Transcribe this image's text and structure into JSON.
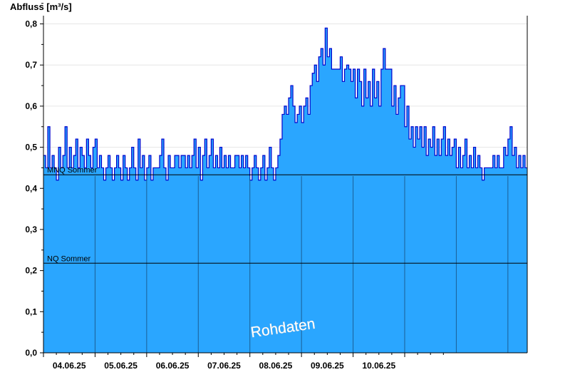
{
  "chart_data": {
    "type": "area",
    "ylabel": "Abfluss [m³/s]",
    "ylim": [
      0,
      0.82
    ],
    "y_ticks": [
      "0,0",
      "0,1",
      "0,2",
      "0,3",
      "0,4",
      "0,5",
      "0,6",
      "0,7",
      "0,8"
    ],
    "x_ticks": [
      "04.06.25",
      "05.06.25",
      "06.06.25",
      "07.06.25",
      "08.06.25",
      "09.06.25",
      "10.06.25"
    ],
    "grid": true,
    "fill_color": "#2aa6ff",
    "line_color": "#0000cc",
    "reference_lines": [
      {
        "label": "MNQ Sommer",
        "value": 0.433
      },
      {
        "label": "NQ Sommer",
        "value": 0.218
      }
    ],
    "watermark": "Rohdaten",
    "series": [
      {
        "x_start": "03.06.25 12:00",
        "interval_hours": 1,
        "values": [
          0.48,
          0.45,
          0.55,
          0.45,
          0.48,
          0.45,
          0.42,
          0.5,
          0.45,
          0.48,
          0.55,
          0.45,
          0.5,
          0.45,
          0.48,
          0.52,
          0.45,
          0.5,
          0.48,
          0.45,
          0.52,
          0.48,
          0.45,
          0.5,
          0.52,
          0.45,
          0.48,
          0.45,
          0.42,
          0.45,
          0.48,
          0.45,
          0.42,
          0.45,
          0.48,
          0.45,
          0.42,
          0.48,
          0.45,
          0.42,
          0.45,
          0.5,
          0.45,
          0.42,
          0.52,
          0.45,
          0.48,
          0.42,
          0.45,
          0.48,
          0.42,
          0.45,
          0.45,
          0.45,
          0.48,
          0.52,
          0.45,
          0.42,
          0.48,
          0.45,
          0.45,
          0.48,
          0.48,
          0.45,
          0.48,
          0.48,
          0.45,
          0.48,
          0.45,
          0.48,
          0.52,
          0.45,
          0.5,
          0.42,
          0.48,
          0.52,
          0.45,
          0.48,
          0.52,
          0.45,
          0.48,
          0.45,
          0.5,
          0.45,
          0.48,
          0.45,
          0.48,
          0.45,
          0.45,
          0.48,
          0.48,
          0.45,
          0.48,
          0.45,
          0.48,
          0.45,
          0.42,
          0.45,
          0.48,
          0.45,
          0.42,
          0.45,
          0.48,
          0.42,
          0.45,
          0.5,
          0.45,
          0.42,
          0.45,
          0.48,
          0.52,
          0.58,
          0.6,
          0.58,
          0.62,
          0.65,
          0.6,
          0.56,
          0.58,
          0.6,
          0.56,
          0.6,
          0.62,
          0.58,
          0.65,
          0.68,
          0.7,
          0.66,
          0.72,
          0.74,
          0.7,
          0.79,
          0.72,
          0.74,
          0.69,
          0.69,
          0.69,
          0.69,
          0.72,
          0.66,
          0.69,
          0.7,
          0.69,
          0.66,
          0.69,
          0.62,
          0.69,
          0.66,
          0.6,
          0.69,
          0.62,
          0.66,
          0.6,
          0.69,
          0.62,
          0.66,
          0.6,
          0.69,
          0.74,
          0.69,
          0.69,
          0.69,
          0.6,
          0.65,
          0.58,
          0.62,
          0.65,
          0.65,
          0.55,
          0.6,
          0.52,
          0.55,
          0.5,
          0.55,
          0.52,
          0.55,
          0.5,
          0.55,
          0.48,
          0.52,
          0.5,
          0.55,
          0.48,
          0.52,
          0.48,
          0.52,
          0.55,
          0.48,
          0.52,
          0.48,
          0.5,
          0.52,
          0.45,
          0.5,
          0.45,
          0.48,
          0.52,
          0.45,
          0.48,
          0.45,
          0.5,
          0.45,
          0.48,
          0.45,
          0.42,
          0.45,
          0.45,
          0.45,
          0.45,
          0.48,
          0.45,
          0.48,
          0.45,
          0.45,
          0.5,
          0.48,
          0.52,
          0.55,
          0.48,
          0.5,
          0.45,
          0.48,
          0.45,
          0.48,
          0.45
        ]
      }
    ]
  }
}
